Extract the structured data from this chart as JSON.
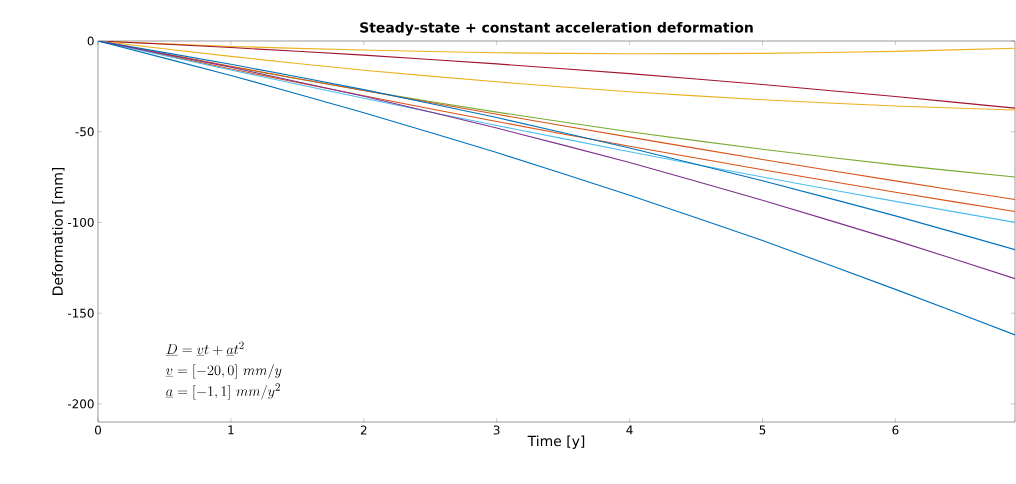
{
  "chart_data": {
    "type": "line",
    "title": "Steady-state + constant acceleration deformation",
    "xlabel": "Time [y]",
    "ylabel": "Deformation [mm]",
    "x": [
      0,
      1,
      2,
      3,
      4,
      5,
      6,
      6.9
    ],
    "xlim": [
      0,
      6.9
    ],
    "xticks": [
      0,
      1,
      2,
      3,
      4,
      5,
      6
    ],
    "ylim": [
      -210,
      0
    ],
    "yticks": [
      -200,
      -150,
      -100,
      -50,
      0
    ],
    "grid": false,
    "marker": "none",
    "line_style": "solid",
    "annotations": [
      "\\underline{D} = \\underline{v}t + \\underline{a}t^2",
      "\\underline{v} = [-20, 0]\\ mm/y",
      "\\underline{a} = [-1, 1]\\ mm/y^2"
    ],
    "series": [
      {
        "color": "#edb120",
        "values": [
          0,
          -3,
          -5,
          -6.5,
          -7,
          -6.8,
          -5.7,
          -4
        ]
      },
      {
        "color": "#a2142f",
        "values": [
          0,
          -3.6,
          -7.8,
          -12.6,
          -18,
          -24,
          -30.6,
          -37
        ]
      },
      {
        "color": "#edb120",
        "values": [
          0,
          -8.5,
          -16.1,
          -22.5,
          -28,
          -32.4,
          -35.8,
          -38
        ]
      },
      {
        "color": "#77ac30",
        "values": [
          0,
          -14.2,
          -27.3,
          -39.2,
          -50,
          -59.7,
          -68.3,
          -75
        ]
      },
      {
        "color": "#d95319",
        "values": [
          0,
          -13.9,
          -27.3,
          -40.4,
          -53,
          -65.3,
          -77.1,
          -87.4
        ]
      },
      {
        "color": "#d95319",
        "values": [
          0,
          -15.4,
          -30.2,
          -44.4,
          -58,
          -71,
          -83.4,
          -94
        ]
      },
      {
        "color": "#4dbeee",
        "values": [
          0,
          -16,
          -31.6,
          -46.6,
          -61,
          -75,
          -88.4,
          -100
        ]
      },
      {
        "color": "#0072bd",
        "values": [
          0,
          -12.8,
          -26.8,
          -42.2,
          -59,
          -77,
          -96.4,
          -115
        ]
      },
      {
        "color": "#7e2f8e",
        "values": [
          0,
          -14.5,
          -30.5,
          -48,
          -67,
          -87.8,
          -109.9,
          -131
        ]
      },
      {
        "color": "#0072bd",
        "values": [
          0,
          -19,
          -39.5,
          -61.5,
          -85,
          -110,
          -136.9,
          -162
        ]
      }
    ]
  }
}
